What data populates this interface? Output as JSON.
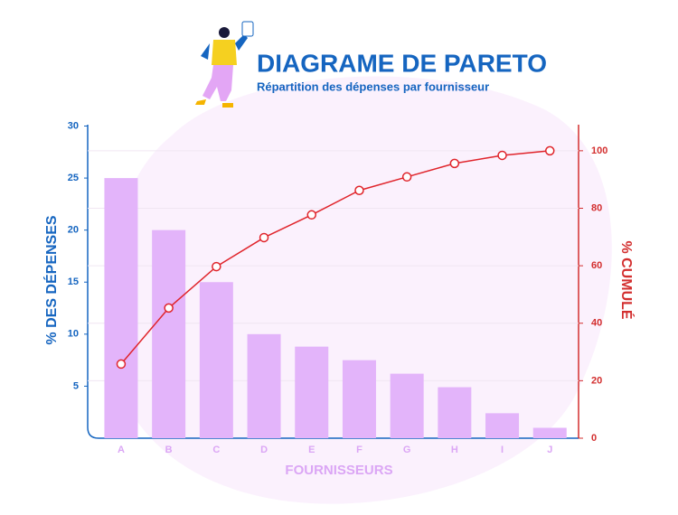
{
  "chart_data": {
    "type": "pareto",
    "title": "DIAGRAME DE PARETO",
    "subtitle": "Répartition des dépenses par fournisseur",
    "x_label": "FOURNISSEURS",
    "y_label": "% DES DÉPENSES",
    "y2_label": "% CUMULÉ",
    "categories": [
      "A",
      "B",
      "C",
      "D",
      "E",
      "F",
      "G",
      "H",
      "I",
      "J"
    ],
    "series": [
      {
        "name": "% des dépenses",
        "type": "bar",
        "color": "#e3b4fa",
        "values": [
          25,
          20,
          15,
          10,
          8.8,
          7.5,
          6.2,
          4.9,
          2.4,
          1
        ]
      },
      {
        "name": "% cumulé",
        "type": "line",
        "axis": "y2",
        "color": "#e0242b",
        "values": [
          25.8,
          45.3,
          59.7,
          69.8,
          77.7,
          86.2,
          90.9,
          95.6,
          98.4,
          100
        ]
      }
    ],
    "ylim": [
      0,
      30
    ],
    "yticks": [
      5,
      10,
      15,
      20,
      25,
      30
    ],
    "y2lim": [
      0,
      108.6
    ],
    "y2ticks": [
      0,
      20,
      40,
      60,
      80,
      100
    ],
    "grid": true
  }
}
